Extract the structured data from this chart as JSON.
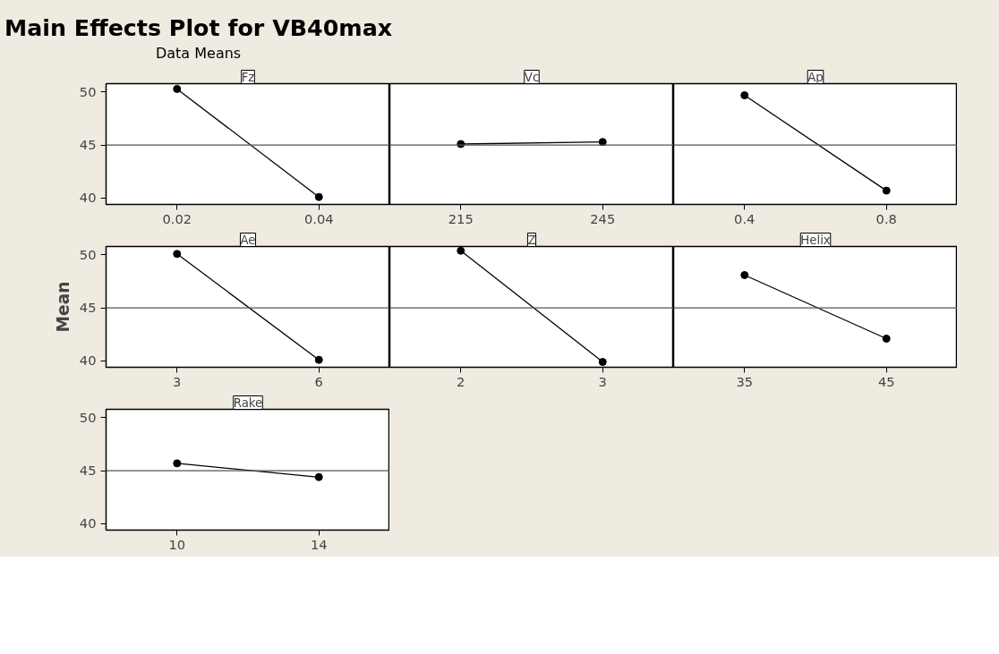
{
  "chart_data": [
    {
      "type": "line",
      "title": "Fz",
      "annotations": [
        "Main Effects Plot for VB40max",
        "Data Means"
      ],
      "categories": [
        "0.02",
        "0.04"
      ],
      "values": [
        50.3,
        40.1
      ],
      "color": "#000000",
      "marker": "circle",
      "ylim": [
        39.4,
        50.8
      ],
      "yticks": [
        40,
        45,
        50
      ],
      "ref_lines": [
        {
          "axis": "y",
          "value": 45
        }
      ]
    },
    {
      "type": "line",
      "title": "Vc",
      "categories": [
        "215",
        "245"
      ],
      "values": [
        45.1,
        45.3
      ],
      "color": "#000000",
      "marker": "circle",
      "ylim": [
        39.4,
        50.8
      ],
      "yticks": [
        40,
        45,
        50
      ],
      "tick_labels": "x",
      "ref_lines": [
        {
          "axis": "y",
          "value": 45
        }
      ]
    },
    {
      "type": "line",
      "title": "Ap",
      "categories": [
        "0.4",
        "0.8"
      ],
      "values": [
        49.7,
        40.7
      ],
      "color": "#000000",
      "marker": "circle",
      "ylim": [
        39.4,
        50.8
      ],
      "yticks": [
        40,
        45,
        50
      ],
      "tick_labels": "x",
      "ref_lines": [
        {
          "axis": "y",
          "value": 45
        }
      ]
    },
    {
      "type": "line",
      "title": "Ae",
      "ylabel": "Mean",
      "categories": [
        "3",
        "6"
      ],
      "values": [
        50.1,
        40.1
      ],
      "color": "#000000",
      "marker": "circle",
      "ylim": [
        39.4,
        50.8
      ],
      "yticks": [
        40,
        45,
        50
      ],
      "ref_lines": [
        {
          "axis": "y",
          "value": 45
        }
      ]
    },
    {
      "type": "line",
      "title": "Z",
      "categories": [
        "2",
        "3"
      ],
      "values": [
        50.4,
        39.9
      ],
      "color": "#000000",
      "marker": "circle",
      "ylim": [
        39.4,
        50.8
      ],
      "yticks": [
        40,
        45,
        50
      ],
      "tick_labels": "x",
      "ref_lines": [
        {
          "axis": "y",
          "value": 45
        }
      ]
    },
    {
      "type": "line",
      "title": "Helix",
      "categories": [
        "35",
        "45"
      ],
      "values": [
        48.1,
        42.1
      ],
      "color": "#000000",
      "marker": "circle",
      "ylim": [
        39.4,
        50.8
      ],
      "yticks": [
        40,
        45,
        50
      ],
      "tick_labels": "x",
      "ref_lines": [
        {
          "axis": "y",
          "value": 45
        }
      ]
    },
    {
      "type": "line",
      "title": "Rake",
      "categories": [
        "10",
        "14"
      ],
      "values": [
        45.7,
        44.4
      ],
      "color": "#000000",
      "marker": "circle",
      "ylim": [
        39.4,
        50.8
      ],
      "yticks": [
        40,
        45,
        50
      ],
      "ref_lines": [
        {
          "axis": "y",
          "value": 45
        }
      ]
    }
  ]
}
